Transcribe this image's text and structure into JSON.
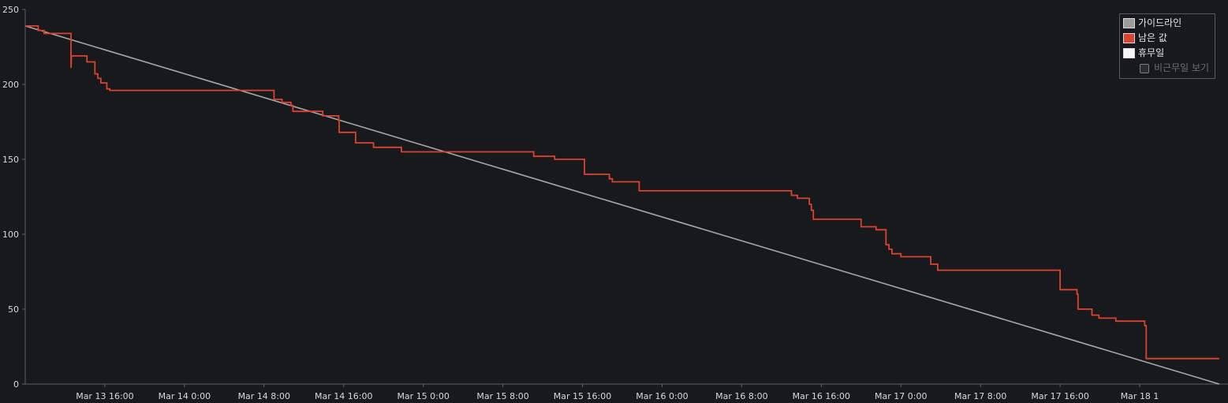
{
  "chart_data": {
    "type": "line",
    "title": "",
    "xlabel": "",
    "ylabel": "",
    "x_range": [
      "Mar 13 8:00",
      "Mar 18 8:00"
    ],
    "ylim": [
      0,
      250
    ],
    "y_ticks": [
      0,
      50,
      100,
      150,
      200,
      250
    ],
    "x_tick_labels": [
      "Mar 13 16:00",
      "Mar 14 0:00",
      "Mar 14 8:00",
      "Mar 14 16:00",
      "Mar 15 0:00",
      "Mar 15 8:00",
      "Mar 15 16:00",
      "Mar 16 0:00",
      "Mar 16 8:00",
      "Mar 16 16:00",
      "Mar 17 0:00",
      "Mar 17 8:00",
      "Mar 17 16:00",
      "Mar 18 1"
    ],
    "x_tick_hours": [
      8,
      16,
      24,
      32,
      40,
      48,
      56,
      64,
      72,
      80,
      88,
      96,
      104,
      112
    ],
    "grid": false,
    "legend_position": "top-right",
    "series": [
      {
        "name": "가이드라인",
        "color": "#a8a8a8",
        "style": "line",
        "points": [
          [
            0,
            239
          ],
          [
            120,
            0
          ]
        ]
      },
      {
        "name": "남은 값",
        "color": "#d9432f",
        "style": "step",
        "points": [
          [
            0,
            239
          ],
          [
            1.3,
            239
          ],
          [
            1.3,
            236
          ],
          [
            1.9,
            236
          ],
          [
            1.9,
            234
          ],
          [
            4.6,
            234
          ],
          [
            4.6,
            211
          ],
          [
            4.65,
            219
          ],
          [
            6.2,
            219
          ],
          [
            6.2,
            215
          ],
          [
            7.0,
            215
          ],
          [
            7.0,
            207
          ],
          [
            7.3,
            207
          ],
          [
            7.3,
            204
          ],
          [
            7.6,
            204
          ],
          [
            7.6,
            201
          ],
          [
            8.2,
            201
          ],
          [
            8.2,
            197
          ],
          [
            8.5,
            197
          ],
          [
            8.5,
            196
          ],
          [
            25.0,
            196
          ],
          [
            25.0,
            190
          ],
          [
            25.8,
            190
          ],
          [
            25.8,
            188
          ],
          [
            26.7,
            188
          ],
          [
            26.7,
            186
          ],
          [
            26.9,
            186
          ],
          [
            26.9,
            182
          ],
          [
            29.9,
            182
          ],
          [
            29.9,
            179
          ],
          [
            31.5,
            179
          ],
          [
            31.5,
            176
          ],
          [
            31.55,
            176
          ],
          [
            31.55,
            168
          ],
          [
            33.2,
            168
          ],
          [
            33.2,
            161
          ],
          [
            35.0,
            161
          ],
          [
            35.0,
            158
          ],
          [
            37.8,
            158
          ],
          [
            37.8,
            155
          ],
          [
            51.1,
            155
          ],
          [
            51.1,
            152
          ],
          [
            53.2,
            152
          ],
          [
            53.2,
            150
          ],
          [
            56.2,
            150
          ],
          [
            56.2,
            140
          ],
          [
            58.7,
            140
          ],
          [
            58.7,
            137
          ],
          [
            59.0,
            137
          ],
          [
            59.0,
            135
          ],
          [
            61.7,
            135
          ],
          [
            61.7,
            129
          ],
          [
            77.0,
            129
          ],
          [
            77.0,
            126
          ],
          [
            77.6,
            126
          ],
          [
            77.6,
            124
          ],
          [
            78.8,
            124
          ],
          [
            78.8,
            120
          ],
          [
            79.0,
            120
          ],
          [
            79.0,
            116
          ],
          [
            79.2,
            116
          ],
          [
            79.2,
            110
          ],
          [
            84.0,
            110
          ],
          [
            84.0,
            105
          ],
          [
            85.5,
            105
          ],
          [
            85.5,
            103
          ],
          [
            86.5,
            103
          ],
          [
            86.5,
            93
          ],
          [
            86.8,
            93
          ],
          [
            86.8,
            90
          ],
          [
            87.1,
            90
          ],
          [
            87.1,
            87
          ],
          [
            88.0,
            87
          ],
          [
            88.0,
            85
          ],
          [
            91.0,
            85
          ],
          [
            91.0,
            80
          ],
          [
            91.7,
            80
          ],
          [
            91.7,
            76
          ],
          [
            104.0,
            76
          ],
          [
            104.0,
            63
          ],
          [
            105.7,
            63
          ],
          [
            105.7,
            60
          ],
          [
            105.8,
            60
          ],
          [
            105.8,
            50
          ],
          [
            107.2,
            50
          ],
          [
            107.2,
            46
          ],
          [
            107.9,
            46
          ],
          [
            107.9,
            44
          ],
          [
            109.6,
            44
          ],
          [
            109.6,
            42
          ],
          [
            112.5,
            42
          ],
          [
            112.5,
            39
          ],
          [
            112.65,
            39
          ],
          [
            112.65,
            17
          ],
          [
            120,
            17
          ]
        ]
      }
    ],
    "legend": {
      "entries": [
        {
          "label": "가이드라인",
          "swatch_color": "#9b9b9b"
        },
        {
          "label": "남은 값",
          "swatch_color": "#d9432f"
        },
        {
          "label": "휴무일",
          "swatch_color": "#f5f5f5"
        }
      ],
      "checkbox_label": "비근무일 보기",
      "checkbox_checked": false
    }
  }
}
